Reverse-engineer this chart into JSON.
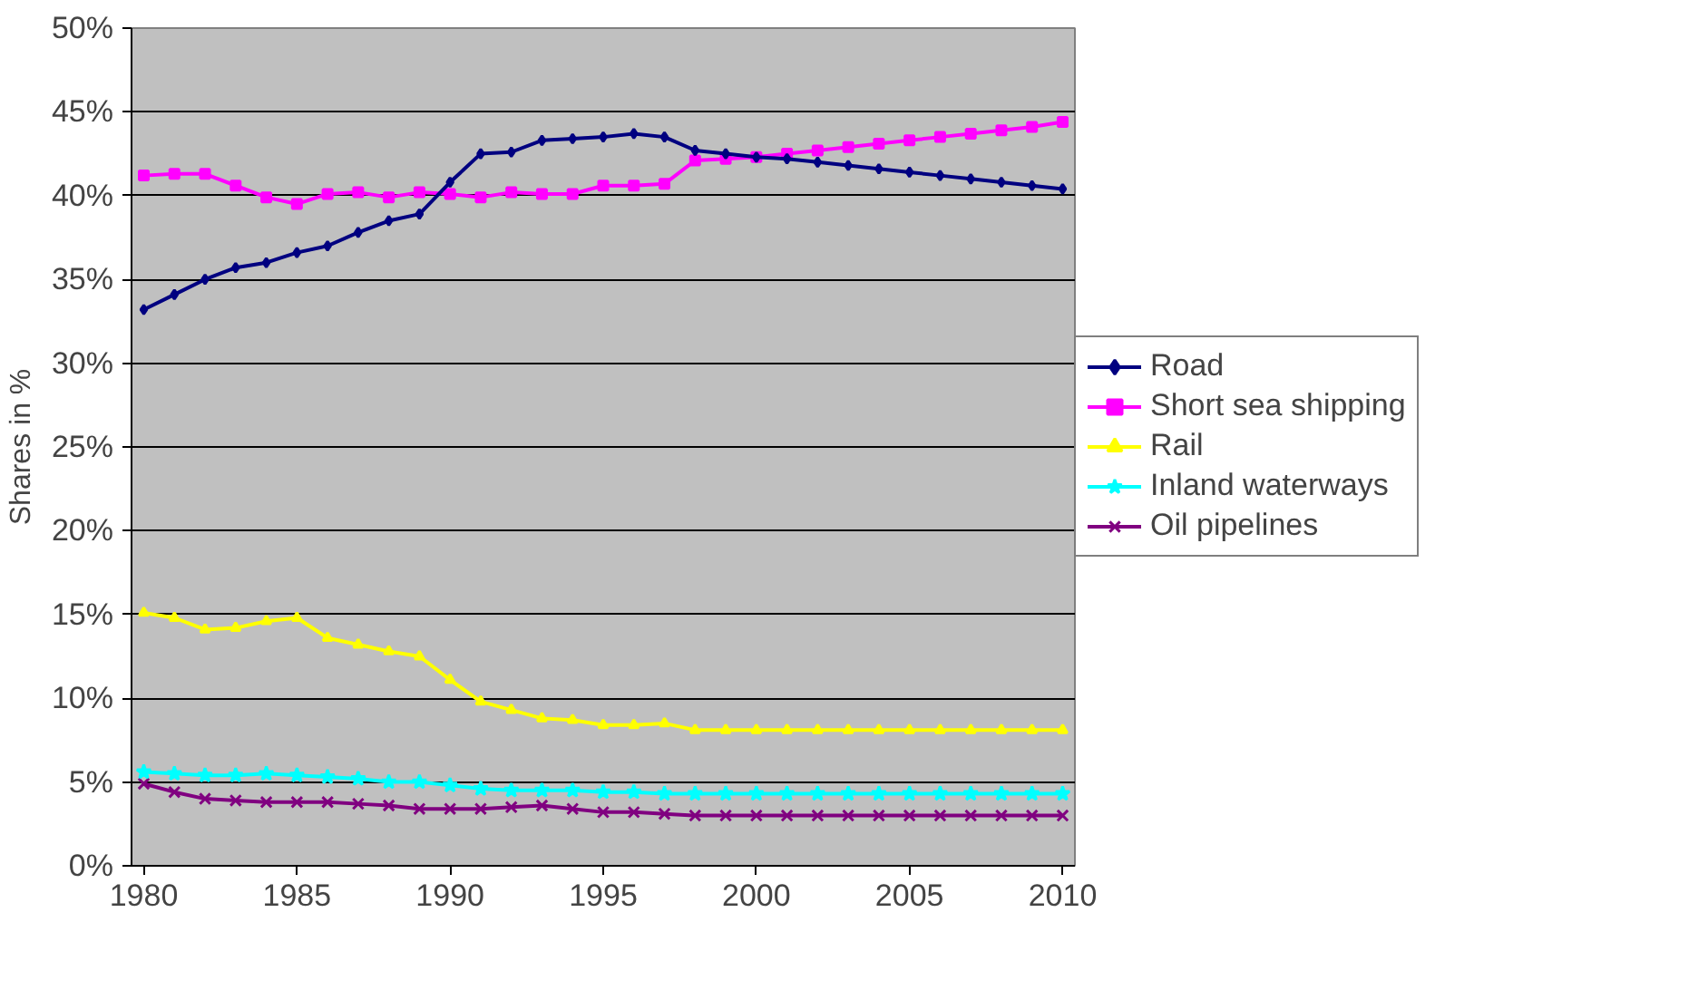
{
  "chart_data": {
    "type": "line",
    "ylabel": "Shares in %",
    "x": [
      1980,
      1981,
      1982,
      1983,
      1984,
      1985,
      1986,
      1987,
      1988,
      1989,
      1990,
      1991,
      1992,
      1993,
      1994,
      1995,
      1996,
      1997,
      1998,
      1999,
      2000,
      2001,
      2002,
      2003,
      2004,
      2005,
      2006,
      2007,
      2008,
      2009,
      2010
    ],
    "xlim": [
      1979.6,
      2010.4
    ],
    "xticks": [
      1980,
      1985,
      1990,
      1995,
      2000,
      2005,
      2010
    ],
    "ylim": [
      0,
      50
    ],
    "yticks": [
      {
        "value": 0,
        "label": "0%"
      },
      {
        "value": 5,
        "label": "5%"
      },
      {
        "value": 10,
        "label": "10%"
      },
      {
        "value": 15,
        "label": "15%"
      },
      {
        "value": 20,
        "label": "20%"
      },
      {
        "value": 25,
        "label": "25%"
      },
      {
        "value": 30,
        "label": "30%"
      },
      {
        "value": 35,
        "label": "35%"
      },
      {
        "value": 40,
        "label": "40%"
      },
      {
        "value": 45,
        "label": "45%"
      },
      {
        "value": 50,
        "label": "50%"
      }
    ],
    "grid": "y",
    "legend": "right",
    "line_style": "solid",
    "series": [
      {
        "name": "Road",
        "color": "#000080",
        "marker": "diamond",
        "values": [
          33.2,
          34.1,
          35.0,
          35.7,
          36.0,
          36.6,
          37.0,
          37.8,
          38.5,
          38.9,
          40.8,
          42.5,
          42.6,
          43.3,
          43.4,
          43.5,
          43.7,
          43.5,
          42.7,
          42.5,
          42.3,
          42.2,
          42.0,
          41.8,
          41.6,
          41.4,
          41.2,
          41.0,
          40.8,
          40.6,
          40.4
        ]
      },
      {
        "name": "Short sea shipping",
        "color": "#ff00ff",
        "marker": "square",
        "values": [
          41.2,
          41.3,
          41.3,
          40.6,
          39.9,
          39.5,
          40.1,
          40.2,
          39.9,
          40.2,
          40.1,
          39.9,
          40.2,
          40.1,
          40.1,
          40.6,
          40.6,
          40.7,
          42.1,
          42.2,
          42.3,
          42.5,
          42.7,
          42.9,
          43.1,
          43.3,
          43.5,
          43.7,
          43.9,
          44.1,
          44.4
        ]
      },
      {
        "name": "Rail",
        "color": "#ffff00",
        "marker": "triangle",
        "values": [
          15.1,
          14.8,
          14.1,
          14.2,
          14.6,
          14.8,
          13.6,
          13.2,
          12.8,
          12.5,
          11.1,
          9.8,
          9.3,
          8.8,
          8.7,
          8.4,
          8.4,
          8.5,
          8.1,
          8.1,
          8.1,
          8.1,
          8.1,
          8.1,
          8.1,
          8.1,
          8.1,
          8.1,
          8.1,
          8.1,
          8.1
        ]
      },
      {
        "name": "Inland waterways",
        "color": "#00ffff",
        "marker": "star",
        "values": [
          5.6,
          5.5,
          5.4,
          5.4,
          5.5,
          5.4,
          5.3,
          5.2,
          5.0,
          5.0,
          4.8,
          4.6,
          4.5,
          4.5,
          4.5,
          4.4,
          4.4,
          4.3,
          4.3,
          4.3,
          4.3,
          4.3,
          4.3,
          4.3,
          4.3,
          4.3,
          4.3,
          4.3,
          4.3,
          4.3,
          4.3
        ]
      },
      {
        "name": "Oil pipelines",
        "color": "#800080",
        "marker": "cross",
        "values": [
          4.9,
          4.4,
          4.0,
          3.9,
          3.8,
          3.8,
          3.8,
          3.7,
          3.6,
          3.4,
          3.4,
          3.4,
          3.5,
          3.6,
          3.4,
          3.2,
          3.2,
          3.1,
          3.0,
          3.0,
          3.0,
          3.0,
          3.0,
          3.0,
          3.0,
          3.0,
          3.0,
          3.0,
          3.0,
          3.0,
          3.0
        ]
      }
    ]
  }
}
